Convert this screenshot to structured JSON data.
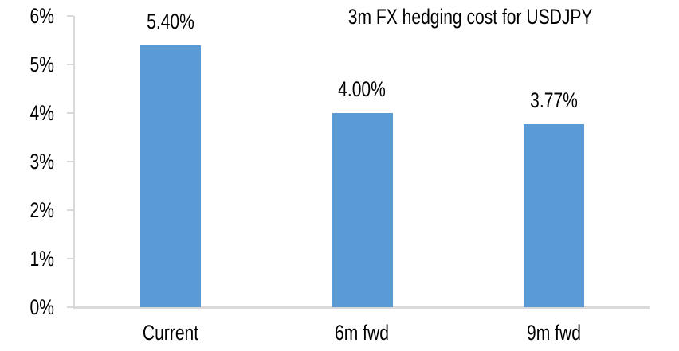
{
  "chart_data": {
    "type": "bar",
    "title": "3m FX hedging cost for USDJPY",
    "categories": [
      "Current",
      "6m fwd",
      "9m fwd"
    ],
    "values": [
      5.4,
      4.0,
      3.77
    ],
    "data_labels": [
      "5.40%",
      "4.00%",
      "3.77%"
    ],
    "y_tick_labels": [
      "0%",
      "1%",
      "2%",
      "3%",
      "4%",
      "5%",
      "6%"
    ],
    "ylim": [
      0,
      6
    ],
    "xlabel": "",
    "ylabel": "",
    "grid": false,
    "legend_position": "none",
    "bar_color": "#5B9BD5",
    "axis_color": "#D9D9D9",
    "text_color": "#000000"
  }
}
